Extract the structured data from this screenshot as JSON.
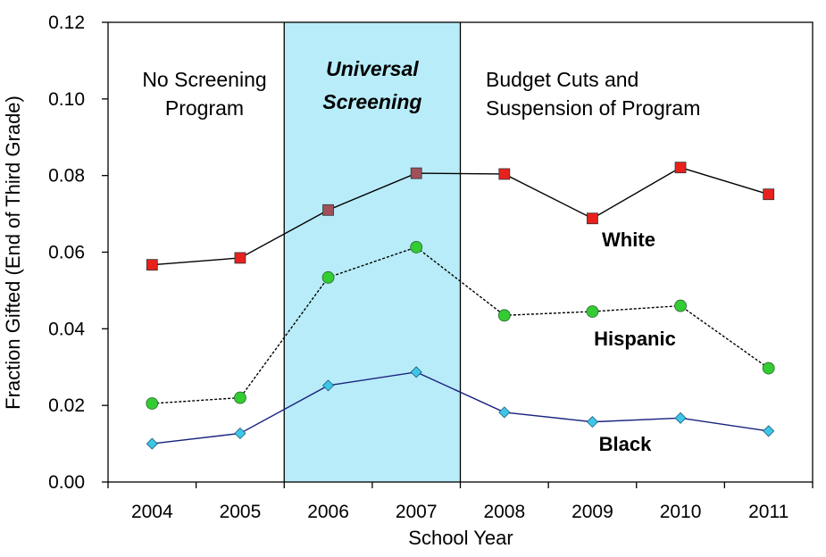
{
  "chart_data": {
    "type": "line",
    "xlabel": "School Year",
    "ylabel": "Fraction Gifted (End of Third Grade)",
    "ylim": [
      0,
      0.12
    ],
    "yticks": [
      "0.00",
      "0.02",
      "0.04",
      "0.06",
      "0.08",
      "0.10",
      "0.12"
    ],
    "categories": [
      "2004",
      "2005",
      "2006",
      "2007",
      "2008",
      "2009",
      "2010",
      "2011"
    ],
    "grid": false,
    "regions": [
      {
        "lines": [
          "No Screening",
          "Program"
        ],
        "from": "2004",
        "to": "2005"
      },
      {
        "lines": [
          "Universal",
          "Screening"
        ],
        "from": "2006",
        "to": "2007",
        "shaded": true,
        "color": "#b8ecf8"
      },
      {
        "lines": [
          "Budget Cuts and",
          "Suspension of Program"
        ],
        "from": "2008",
        "to": "2011"
      }
    ],
    "series": [
      {
        "name": "White",
        "values": [
          0.0567,
          0.0585,
          0.071,
          0.0806,
          0.0804,
          0.0688,
          0.0821,
          0.0751
        ],
        "color": "#000000",
        "marker": "square",
        "marker_color": "#e8211d",
        "marker_color_shaded": "#a0505a",
        "dash": false
      },
      {
        "name": "Hispanic",
        "values": [
          0.0205,
          0.022,
          0.0534,
          0.0613,
          0.0435,
          0.0445,
          0.046,
          0.0297
        ],
        "color": "#000000",
        "marker": "circle",
        "marker_color": "#33cc33",
        "dash": true
      },
      {
        "name": "Black",
        "values": [
          0.01,
          0.0127,
          0.0252,
          0.0287,
          0.0182,
          0.0157,
          0.0167,
          0.0133
        ],
        "color": "#1a237e",
        "marker": "diamond",
        "marker_color": "#3ec6e8",
        "dash": false
      }
    ]
  }
}
